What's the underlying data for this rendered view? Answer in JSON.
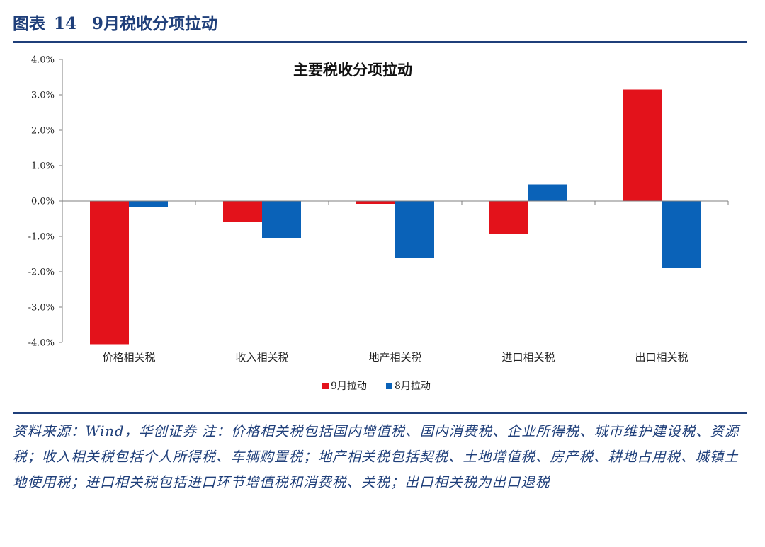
{
  "figure": {
    "label": "图表",
    "number": "14",
    "title": "9月税收分项拉动"
  },
  "colors": {
    "accent": "#1f3f7a",
    "series_sep": "#e3121b",
    "series_aug": "#0a62b8"
  },
  "chart_data": {
    "type": "bar",
    "title": "主要税收分项拉动",
    "categories": [
      "价格相关税",
      "收入相关税",
      "地产相关税",
      "进口相关税",
      "出口相关税"
    ],
    "series": [
      {
        "name": "9月拉动",
        "color": "#e3121b",
        "values": [
          -4.05,
          -0.6,
          -0.08,
          -0.92,
          3.15
        ]
      },
      {
        "name": "8月拉动",
        "color": "#0a62b8",
        "values": [
          -0.17,
          -1.05,
          -1.6,
          0.47,
          -1.9
        ]
      }
    ],
    "ylim": [
      -4.0,
      4.0
    ],
    "yticks": [
      "4.0%",
      "3.0%",
      "2.0%",
      "1.0%",
      "0.0%",
      "-1.0%",
      "-2.0%",
      "-3.0%",
      "-4.0%"
    ],
    "xlabel": "",
    "ylabel": "",
    "legend_position": "bottom-center"
  },
  "notes": "资料来源：Wind，华创证券   注：价格相关税包括国内增值税、国内消费税、企业所得税、城市维护建设税、资源税；收入相关税包括个人所得税、车辆购置税；地产相关税包括契税、土地增值税、房产税、耕地占用税、城镇土地使用税；进口相关税包括进口环节增值税和消费税、关税；出口相关税为出口退税"
}
